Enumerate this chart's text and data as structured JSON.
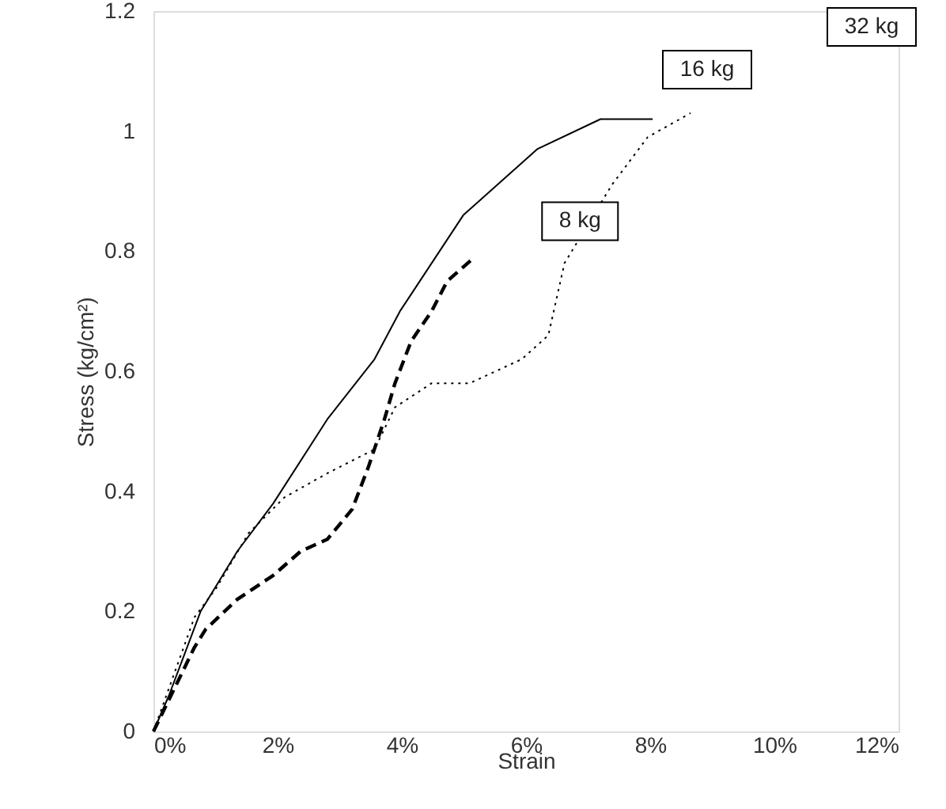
{
  "chart_data": {
    "type": "line",
    "xlabel": "Strain",
    "ylabel": "Stress (kg/cm²)",
    "xlim": [
      0,
      12
    ],
    "xticks": [
      {
        "value": 0,
        "label": "0%"
      },
      {
        "value": 2,
        "label": "2%"
      },
      {
        "value": 4,
        "label": "4%"
      },
      {
        "value": 6,
        "label": "6%"
      },
      {
        "value": 8,
        "label": "8%"
      },
      {
        "value": 10,
        "label": "10%"
      },
      {
        "value": 12,
        "label": "12%"
      }
    ],
    "ylim": [
      0,
      1.2
    ],
    "yticks": [
      0,
      0.2,
      0.4,
      0.6,
      0.8,
      1,
      1.2
    ],
    "grid": false,
    "series": [
      {
        "color": "#000000",
        "line_style": "dashed",
        "x": [
          0,
          0.66,
          0.84,
          1.35,
          1.93,
          2.37,
          2.8,
          3.2,
          3.46,
          3.72,
          3.89,
          4.15,
          4.48,
          4.73,
          5.17
        ],
        "values": [
          0,
          0.14,
          0.17,
          0.22,
          0.26,
          0.3,
          0.32,
          0.37,
          0.44,
          0.52,
          0.58,
          0.65,
          0.7,
          0.75,
          0.79
        ]
      },
      {
        "color": "#000000",
        "line_style": "solid",
        "x": [
          0,
          0.25,
          0.76,
          1.35,
          1.93,
          2.8,
          3.56,
          3.97,
          4.99,
          6.18,
          7.2,
          8.04
        ],
        "values": [
          0,
          0.06,
          0.2,
          0.3,
          0.38,
          0.52,
          0.62,
          0.7,
          0.86,
          0.97,
          1.02,
          1.02
        ]
      },
      {
        "color": "#000000",
        "line_style": "dotted",
        "x": [
          0,
          0.66,
          1.02,
          1.53,
          2.11,
          2.8,
          3.56,
          3.89,
          4.48,
          5.09,
          5.93,
          6.36,
          6.62,
          7.38,
          7.96,
          8.65
        ],
        "values": [
          0,
          0.19,
          0.24,
          0.33,
          0.39,
          0.43,
          0.47,
          0.54,
          0.58,
          0.58,
          0.62,
          0.66,
          0.78,
          0.91,
          0.99,
          1.03
        ]
      }
    ],
    "annotations": [
      {
        "text": "8 kg",
        "x": 6.87,
        "y": 0.85
      },
      "16 kg",
      "32 kg"
    ]
  }
}
